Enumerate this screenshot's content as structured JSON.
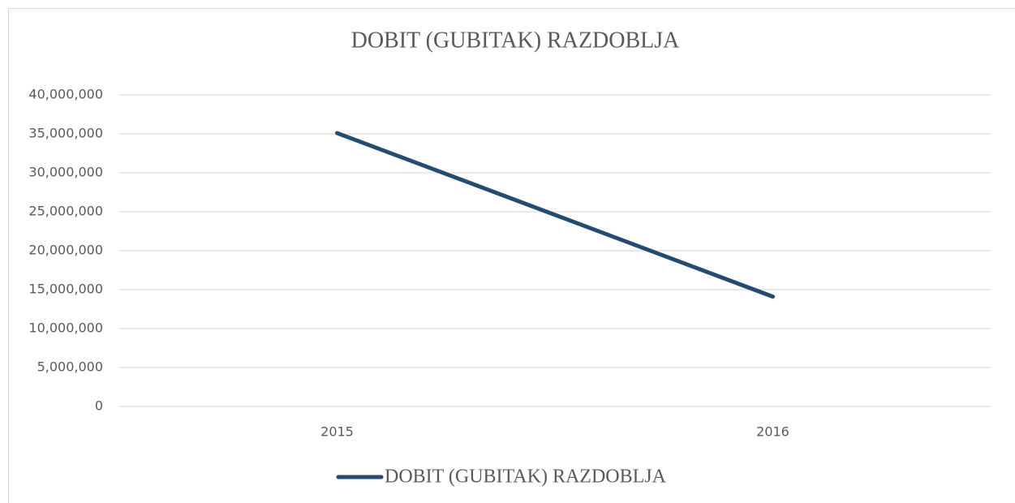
{
  "chart_data": {
    "type": "line",
    "title": "DOBIT (GUBITAK) RAZDOBLJA",
    "categories": [
      "2015",
      "2016"
    ],
    "series": [
      {
        "name": "DOBIT (GUBITAK) RAZDOBLJA",
        "color": "#264b73",
        "values": [
          35100000,
          14100000
        ]
      }
    ],
    "ylim": [
      0,
      40000000
    ],
    "yticks": [
      0,
      {
        "value": 5000000,
        "label": "5,000,000"
      },
      {
        "value": 10000000,
        "label": "10,000,000"
      },
      {
        "value": 15000000,
        "label": "15,000,000"
      },
      {
        "value": 20000000,
        "label": "20,000,000"
      },
      {
        "value": 25000000,
        "label": "25,000,000"
      },
      {
        "value": 30000000,
        "label": "30,000,000"
      },
      {
        "value": 35000000,
        "label": "35,000,000"
      },
      {
        "value": 40000000,
        "label": "40,000,000"
      }
    ],
    "grid": true,
    "legend": "bottom"
  }
}
